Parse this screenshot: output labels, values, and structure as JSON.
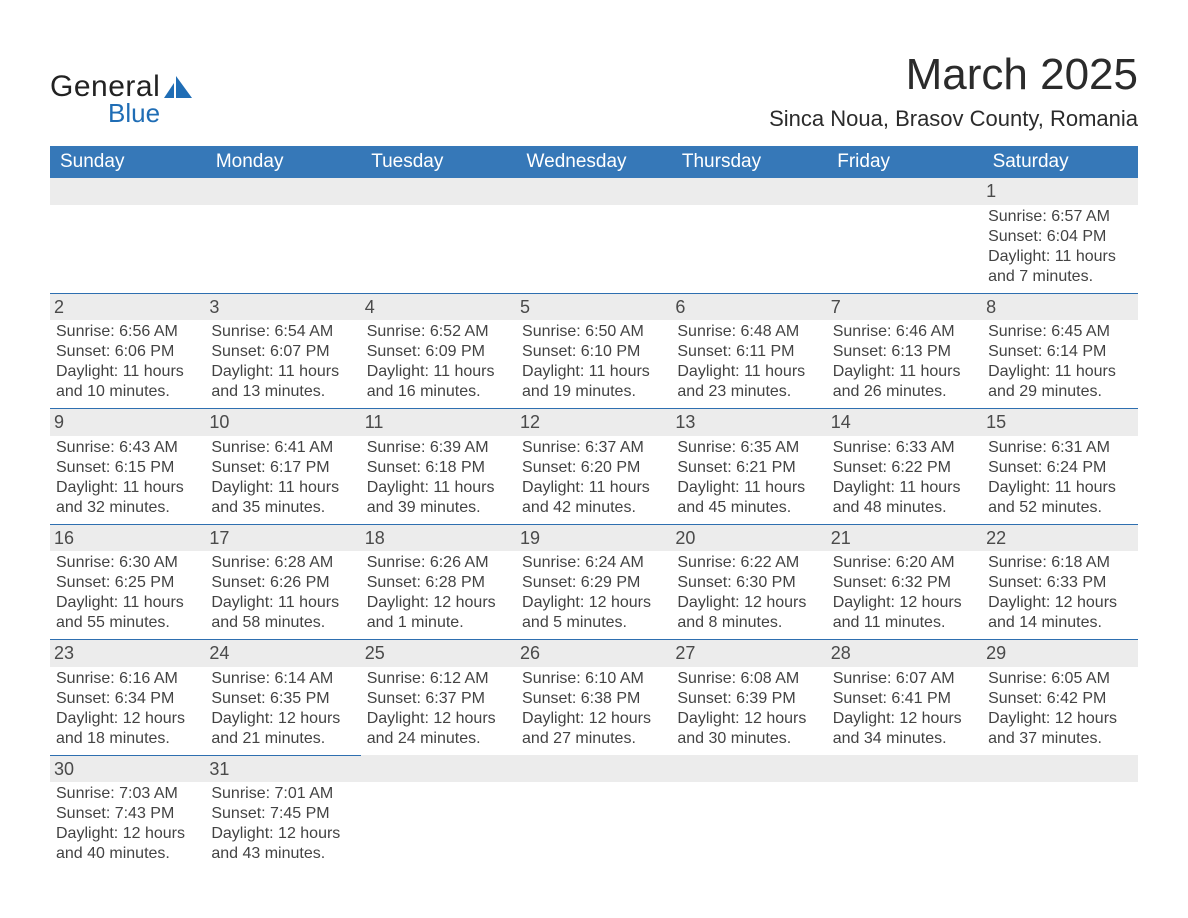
{
  "colors": {
    "header_bg": "#3678b8",
    "header_text": "#ffffff",
    "row_divider": "#2e6fb0",
    "daynum_bg": "#ececec",
    "body_text": "#434343",
    "logo_blue": "#1f6db5",
    "page_bg": "#ffffff"
  },
  "logo": {
    "line1": "General",
    "line2": "Blue"
  },
  "title": "March 2025",
  "location": "Sinca Noua, Brasov County, Romania",
  "weekdays": [
    "Sunday",
    "Monday",
    "Tuesday",
    "Wednesday",
    "Thursday",
    "Friday",
    "Saturday"
  ],
  "weeks": [
    [
      null,
      null,
      null,
      null,
      null,
      null,
      {
        "n": "1",
        "sr": "Sunrise: 6:57 AM",
        "ss": "Sunset: 6:04 PM",
        "d1": "Daylight: 11 hours",
        "d2": "and 7 minutes."
      }
    ],
    [
      {
        "n": "2",
        "sr": "Sunrise: 6:56 AM",
        "ss": "Sunset: 6:06 PM",
        "d1": "Daylight: 11 hours",
        "d2": "and 10 minutes."
      },
      {
        "n": "3",
        "sr": "Sunrise: 6:54 AM",
        "ss": "Sunset: 6:07 PM",
        "d1": "Daylight: 11 hours",
        "d2": "and 13 minutes."
      },
      {
        "n": "4",
        "sr": "Sunrise: 6:52 AM",
        "ss": "Sunset: 6:09 PM",
        "d1": "Daylight: 11 hours",
        "d2": "and 16 minutes."
      },
      {
        "n": "5",
        "sr": "Sunrise: 6:50 AM",
        "ss": "Sunset: 6:10 PM",
        "d1": "Daylight: 11 hours",
        "d2": "and 19 minutes."
      },
      {
        "n": "6",
        "sr": "Sunrise: 6:48 AM",
        "ss": "Sunset: 6:11 PM",
        "d1": "Daylight: 11 hours",
        "d2": "and 23 minutes."
      },
      {
        "n": "7",
        "sr": "Sunrise: 6:46 AM",
        "ss": "Sunset: 6:13 PM",
        "d1": "Daylight: 11 hours",
        "d2": "and 26 minutes."
      },
      {
        "n": "8",
        "sr": "Sunrise: 6:45 AM",
        "ss": "Sunset: 6:14 PM",
        "d1": "Daylight: 11 hours",
        "d2": "and 29 minutes."
      }
    ],
    [
      {
        "n": "9",
        "sr": "Sunrise: 6:43 AM",
        "ss": "Sunset: 6:15 PM",
        "d1": "Daylight: 11 hours",
        "d2": "and 32 minutes."
      },
      {
        "n": "10",
        "sr": "Sunrise: 6:41 AM",
        "ss": "Sunset: 6:17 PM",
        "d1": "Daylight: 11 hours",
        "d2": "and 35 minutes."
      },
      {
        "n": "11",
        "sr": "Sunrise: 6:39 AM",
        "ss": "Sunset: 6:18 PM",
        "d1": "Daylight: 11 hours",
        "d2": "and 39 minutes."
      },
      {
        "n": "12",
        "sr": "Sunrise: 6:37 AM",
        "ss": "Sunset: 6:20 PM",
        "d1": "Daylight: 11 hours",
        "d2": "and 42 minutes."
      },
      {
        "n": "13",
        "sr": "Sunrise: 6:35 AM",
        "ss": "Sunset: 6:21 PM",
        "d1": "Daylight: 11 hours",
        "d2": "and 45 minutes."
      },
      {
        "n": "14",
        "sr": "Sunrise: 6:33 AM",
        "ss": "Sunset: 6:22 PM",
        "d1": "Daylight: 11 hours",
        "d2": "and 48 minutes."
      },
      {
        "n": "15",
        "sr": "Sunrise: 6:31 AM",
        "ss": "Sunset: 6:24 PM",
        "d1": "Daylight: 11 hours",
        "d2": "and 52 minutes."
      }
    ],
    [
      {
        "n": "16",
        "sr": "Sunrise: 6:30 AM",
        "ss": "Sunset: 6:25 PM",
        "d1": "Daylight: 11 hours",
        "d2": "and 55 minutes."
      },
      {
        "n": "17",
        "sr": "Sunrise: 6:28 AM",
        "ss": "Sunset: 6:26 PM",
        "d1": "Daylight: 11 hours",
        "d2": "and 58 minutes."
      },
      {
        "n": "18",
        "sr": "Sunrise: 6:26 AM",
        "ss": "Sunset: 6:28 PM",
        "d1": "Daylight: 12 hours",
        "d2": "and 1 minute."
      },
      {
        "n": "19",
        "sr": "Sunrise: 6:24 AM",
        "ss": "Sunset: 6:29 PM",
        "d1": "Daylight: 12 hours",
        "d2": "and 5 minutes."
      },
      {
        "n": "20",
        "sr": "Sunrise: 6:22 AM",
        "ss": "Sunset: 6:30 PM",
        "d1": "Daylight: 12 hours",
        "d2": "and 8 minutes."
      },
      {
        "n": "21",
        "sr": "Sunrise: 6:20 AM",
        "ss": "Sunset: 6:32 PM",
        "d1": "Daylight: 12 hours",
        "d2": "and 11 minutes."
      },
      {
        "n": "22",
        "sr": "Sunrise: 6:18 AM",
        "ss": "Sunset: 6:33 PM",
        "d1": "Daylight: 12 hours",
        "d2": "and 14 minutes."
      }
    ],
    [
      {
        "n": "23",
        "sr": "Sunrise: 6:16 AM",
        "ss": "Sunset: 6:34 PM",
        "d1": "Daylight: 12 hours",
        "d2": "and 18 minutes."
      },
      {
        "n": "24",
        "sr": "Sunrise: 6:14 AM",
        "ss": "Sunset: 6:35 PM",
        "d1": "Daylight: 12 hours",
        "d2": "and 21 minutes."
      },
      {
        "n": "25",
        "sr": "Sunrise: 6:12 AM",
        "ss": "Sunset: 6:37 PM",
        "d1": "Daylight: 12 hours",
        "d2": "and 24 minutes."
      },
      {
        "n": "26",
        "sr": "Sunrise: 6:10 AM",
        "ss": "Sunset: 6:38 PM",
        "d1": "Daylight: 12 hours",
        "d2": "and 27 minutes."
      },
      {
        "n": "27",
        "sr": "Sunrise: 6:08 AM",
        "ss": "Sunset: 6:39 PM",
        "d1": "Daylight: 12 hours",
        "d2": "and 30 minutes."
      },
      {
        "n": "28",
        "sr": "Sunrise: 6:07 AM",
        "ss": "Sunset: 6:41 PM",
        "d1": "Daylight: 12 hours",
        "d2": "and 34 minutes."
      },
      {
        "n": "29",
        "sr": "Sunrise: 6:05 AM",
        "ss": "Sunset: 6:42 PM",
        "d1": "Daylight: 12 hours",
        "d2": "and 37 minutes."
      }
    ],
    [
      {
        "n": "30",
        "sr": "Sunrise: 7:03 AM",
        "ss": "Sunset: 7:43 PM",
        "d1": "Daylight: 12 hours",
        "d2": "and 40 minutes."
      },
      {
        "n": "31",
        "sr": "Sunrise: 7:01 AM",
        "ss": "Sunset: 7:45 PM",
        "d1": "Daylight: 12 hours",
        "d2": "and 43 minutes."
      },
      null,
      null,
      null,
      null,
      null
    ]
  ]
}
